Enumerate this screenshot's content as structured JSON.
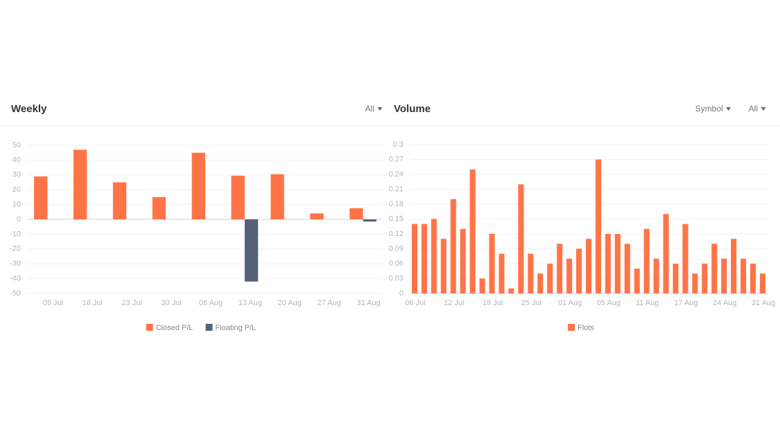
{
  "chart_data": [
    {
      "type": "bar",
      "title": "Weekly",
      "filters": [
        "All"
      ],
      "categories": [
        "09 Jul",
        "16 Jul",
        "23 Jul",
        "30 Jul",
        "06 Aug",
        "13 Aug",
        "20 Aug",
        "27 Aug",
        "31 Aug"
      ],
      "series": [
        {
          "name": "Closed P/L",
          "color": "#ff7447",
          "values": [
            29,
            47,
            25,
            15,
            45,
            29.5,
            30.5,
            4,
            7.5
          ]
        },
        {
          "name": "Floating P/L",
          "color": "#56627a",
          "values": [
            null,
            null,
            null,
            null,
            null,
            -42,
            null,
            null,
            -1.5
          ]
        }
      ],
      "ylim": [
        -50,
        50
      ],
      "yticks": [
        -50,
        -40,
        -30,
        -20,
        -10,
        0,
        10,
        20,
        30,
        40,
        50
      ],
      "grid": true
    },
    {
      "type": "bar",
      "title": "Volume",
      "filters": [
        "Symbol",
        "All"
      ],
      "categories": [
        "06 Jul",
        null,
        null,
        null,
        "12 Jul",
        null,
        null,
        null,
        "19 Jul",
        null,
        null,
        null,
        "25 Jul",
        null,
        null,
        null,
        "01 Aug",
        null,
        null,
        null,
        "05 Aug",
        null,
        null,
        null,
        "11 Aug",
        null,
        null,
        null,
        "17 Aug",
        null,
        null,
        null,
        "24 Aug",
        null,
        null,
        null,
        "31 Aug"
      ],
      "series": [
        {
          "name": "Flots",
          "color": "#ff7447",
          "values": [
            0.14,
            0.14,
            0.15,
            0.11,
            0.19,
            0.13,
            0.25,
            0.03,
            0.12,
            0.08,
            0.01,
            0.22,
            0.08,
            0.04,
            0.06,
            0.1,
            0.07,
            0.09,
            0.11,
            0.27,
            0.12,
            0.12,
            0.1,
            0.05,
            0.13,
            0.07,
            0.16,
            0.06,
            0.14,
            0.04,
            0.06,
            0.1,
            0.07,
            0.11,
            0.07,
            0.06,
            0.04
          ]
        }
      ],
      "ylim": [
        0,
        0.3
      ],
      "yticks": [
        0,
        0.03,
        0.06,
        0.09,
        0.12,
        0.15,
        0.18,
        0.21,
        0.24,
        0.27,
        0.3
      ],
      "grid": true
    }
  ]
}
